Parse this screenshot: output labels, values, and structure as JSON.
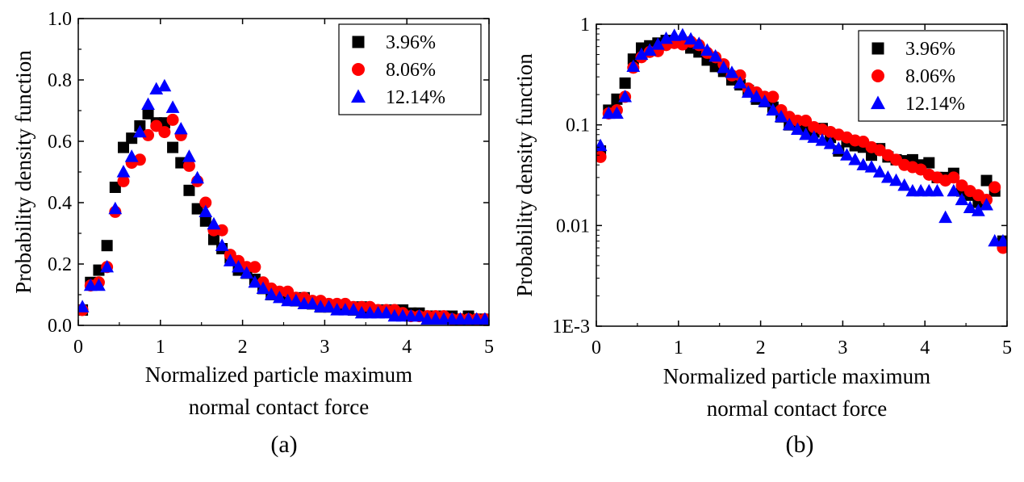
{
  "colors": {
    "3.96%": "#000000",
    "8.06%": "#ff0000",
    "12.14%": "#0000ff"
  },
  "chart_data": [
    {
      "type": "scatter",
      "panel_label": "(a)",
      "xlabel": [
        "Normalized particle maximum",
        "normal contact force"
      ],
      "ylabel": "Probability density function",
      "xlim": [
        0,
        5
      ],
      "ylim": [
        0,
        1.0
      ],
      "y_scale": "linear",
      "x_ticks": [
        "0",
        "1",
        "2",
        "3",
        "4",
        "5"
      ],
      "y_ticks": [
        "0.0",
        "0.2",
        "0.4",
        "0.6",
        "0.8",
        "1.0"
      ],
      "legend_position": "top-right",
      "series": [
        {
          "name": "3.96%",
          "marker": "square",
          "x": [
            0.05,
            0.15,
            0.25,
            0.35,
            0.45,
            0.55,
            0.65,
            0.75,
            0.85,
            0.95,
            1.05,
            1.15,
            1.25,
            1.35,
            1.45,
            1.55,
            1.65,
            1.75,
            1.85,
            1.95,
            2.05,
            2.15,
            2.25,
            2.35,
            2.45,
            2.55,
            2.65,
            2.75,
            2.85,
            2.95,
            3.05,
            3.15,
            3.25,
            3.35,
            3.45,
            3.55,
            3.65,
            3.75,
            3.85,
            3.95,
            4.05,
            4.15,
            4.25,
            4.35,
            4.45,
            4.55,
            4.65,
            4.75,
            4.85,
            4.95
          ],
          "y": [
            0.05,
            0.14,
            0.18,
            0.26,
            0.45,
            0.58,
            0.61,
            0.65,
            0.69,
            0.66,
            0.66,
            0.58,
            0.53,
            0.44,
            0.38,
            0.34,
            0.28,
            0.25,
            0.22,
            0.18,
            0.17,
            0.15,
            0.12,
            0.1,
            0.1,
            0.09,
            0.08,
            0.09,
            0.07,
            0.06,
            0.06,
            0.06,
            0.06,
            0.05,
            0.06,
            0.05,
            0.05,
            0.05,
            0.05,
            0.05,
            0.04,
            0.04,
            0.03,
            0.03,
            0.03,
            0.03,
            0.02,
            0.03,
            0.02,
            0.02
          ]
        },
        {
          "name": "8.06%",
          "marker": "circle",
          "x": [
            0.05,
            0.15,
            0.25,
            0.35,
            0.45,
            0.55,
            0.65,
            0.75,
            0.85,
            0.95,
            1.05,
            1.15,
            1.25,
            1.35,
            1.45,
            1.55,
            1.65,
            1.75,
            1.85,
            1.95,
            2.05,
            2.15,
            2.25,
            2.35,
            2.45,
            2.55,
            2.65,
            2.75,
            2.85,
            2.95,
            3.05,
            3.15,
            3.25,
            3.35,
            3.45,
            3.55,
            3.65,
            3.75,
            3.85,
            3.95,
            4.05,
            4.15,
            4.25,
            4.35,
            4.45,
            4.55,
            4.65,
            4.75,
            4.85,
            4.95
          ],
          "y": [
            0.05,
            0.13,
            0.14,
            0.19,
            0.37,
            0.47,
            0.53,
            0.54,
            0.62,
            0.65,
            0.63,
            0.67,
            0.62,
            0.52,
            0.47,
            0.4,
            0.31,
            0.31,
            0.23,
            0.21,
            0.19,
            0.19,
            0.14,
            0.12,
            0.11,
            0.11,
            0.09,
            0.09,
            0.08,
            0.08,
            0.07,
            0.07,
            0.07,
            0.06,
            0.06,
            0.06,
            0.05,
            0.05,
            0.05,
            0.04,
            0.03,
            0.03,
            0.03,
            0.03,
            0.03,
            0.02,
            0.02,
            0.02,
            0.02,
            0.02
          ]
        },
        {
          "name": "12.14%",
          "marker": "triangle",
          "x": [
            0.05,
            0.15,
            0.25,
            0.35,
            0.45,
            0.55,
            0.65,
            0.75,
            0.85,
            0.95,
            1.05,
            1.15,
            1.25,
            1.35,
            1.45,
            1.55,
            1.65,
            1.75,
            1.85,
            1.95,
            2.05,
            2.15,
            2.25,
            2.35,
            2.45,
            2.55,
            2.65,
            2.75,
            2.85,
            2.95,
            3.05,
            3.15,
            3.25,
            3.35,
            3.45,
            3.55,
            3.65,
            3.75,
            3.85,
            3.95,
            4.05,
            4.15,
            4.25,
            4.35,
            4.45,
            4.55,
            4.65,
            4.75,
            4.85,
            4.95
          ],
          "y": [
            0.06,
            0.13,
            0.13,
            0.19,
            0.38,
            0.5,
            0.55,
            0.63,
            0.72,
            0.77,
            0.78,
            0.71,
            0.64,
            0.55,
            0.48,
            0.37,
            0.33,
            0.26,
            0.21,
            0.19,
            0.17,
            0.14,
            0.12,
            0.1,
            0.09,
            0.08,
            0.08,
            0.07,
            0.07,
            0.06,
            0.06,
            0.05,
            0.05,
            0.05,
            0.04,
            0.04,
            0.04,
            0.04,
            0.03,
            0.03,
            0.03,
            0.03,
            0.02,
            0.02,
            0.02,
            0.02,
            0.02,
            0.02,
            0.02,
            0.02
          ]
        }
      ]
    },
    {
      "type": "scatter",
      "panel_label": "(b)",
      "xlabel": [
        "Normalized particle maximum",
        "normal contact force"
      ],
      "ylabel": "Probability density function",
      "xlim": [
        0,
        5
      ],
      "ylim": [
        0.001,
        1
      ],
      "y_scale": "log",
      "x_ticks": [
        "0",
        "1",
        "2",
        "3",
        "4",
        "5"
      ],
      "y_ticks": [
        "1E-3",
        "0.01",
        "0.1",
        "1"
      ],
      "legend_position": "top-right",
      "series": [
        {
          "name": "3.96%",
          "marker": "square",
          "x": [
            0.05,
            0.15,
            0.25,
            0.35,
            0.45,
            0.55,
            0.65,
            0.75,
            0.85,
            0.95,
            1.05,
            1.15,
            1.25,
            1.35,
            1.45,
            1.55,
            1.65,
            1.75,
            1.85,
            1.95,
            2.05,
            2.15,
            2.25,
            2.35,
            2.45,
            2.55,
            2.65,
            2.75,
            2.85,
            2.95,
            3.05,
            3.15,
            3.25,
            3.35,
            3.45,
            3.55,
            3.65,
            3.75,
            3.85,
            3.95,
            4.05,
            4.15,
            4.25,
            4.35,
            4.45,
            4.55,
            4.65,
            4.75,
            4.85,
            4.95
          ],
          "y": [
            0.055,
            0.14,
            0.18,
            0.26,
            0.45,
            0.58,
            0.61,
            0.65,
            0.69,
            0.66,
            0.66,
            0.58,
            0.53,
            0.44,
            0.38,
            0.34,
            0.28,
            0.25,
            0.22,
            0.18,
            0.17,
            0.15,
            0.12,
            0.1,
            0.1,
            0.09,
            0.085,
            0.092,
            0.075,
            0.055,
            0.068,
            0.062,
            0.06,
            0.05,
            0.058,
            0.048,
            0.045,
            0.044,
            0.045,
            0.04,
            0.042,
            0.03,
            0.03,
            0.033,
            0.022,
            0.02,
            0.017,
            0.028,
            0.022,
            0.007
          ]
        },
        {
          "name": "8.06%",
          "marker": "circle",
          "x": [
            0.05,
            0.15,
            0.25,
            0.35,
            0.45,
            0.55,
            0.65,
            0.75,
            0.85,
            0.95,
            1.05,
            1.15,
            1.25,
            1.35,
            1.45,
            1.55,
            1.65,
            1.75,
            1.85,
            1.95,
            2.05,
            2.15,
            2.25,
            2.35,
            2.45,
            2.55,
            2.65,
            2.75,
            2.85,
            2.95,
            3.05,
            3.15,
            3.25,
            3.35,
            3.45,
            3.55,
            3.65,
            3.75,
            3.85,
            3.95,
            4.05,
            4.15,
            4.25,
            4.35,
            4.45,
            4.55,
            4.65,
            4.75,
            4.85,
            4.95
          ],
          "y": [
            0.048,
            0.13,
            0.14,
            0.19,
            0.37,
            0.47,
            0.53,
            0.54,
            0.62,
            0.65,
            0.63,
            0.67,
            0.62,
            0.52,
            0.47,
            0.4,
            0.31,
            0.31,
            0.23,
            0.21,
            0.19,
            0.19,
            0.14,
            0.12,
            0.11,
            0.11,
            0.095,
            0.09,
            0.085,
            0.08,
            0.075,
            0.07,
            0.068,
            0.06,
            0.056,
            0.05,
            0.045,
            0.04,
            0.038,
            0.036,
            0.032,
            0.03,
            0.028,
            0.03,
            0.025,
            0.022,
            0.02,
            0.018,
            0.024,
            0.006
          ]
        },
        {
          "name": "12.14%",
          "marker": "triangle",
          "x": [
            0.05,
            0.15,
            0.25,
            0.35,
            0.45,
            0.55,
            0.65,
            0.75,
            0.85,
            0.95,
            1.05,
            1.15,
            1.25,
            1.35,
            1.45,
            1.55,
            1.65,
            1.75,
            1.85,
            1.95,
            2.05,
            2.15,
            2.25,
            2.35,
            2.45,
            2.55,
            2.65,
            2.75,
            2.85,
            2.95,
            3.05,
            3.15,
            3.25,
            3.35,
            3.45,
            3.55,
            3.65,
            3.75,
            3.85,
            3.95,
            4.05,
            4.15,
            4.25,
            4.35,
            4.45,
            4.55,
            4.65,
            4.75,
            4.85,
            4.95
          ],
          "y": [
            0.062,
            0.13,
            0.13,
            0.19,
            0.38,
            0.5,
            0.55,
            0.63,
            0.72,
            0.77,
            0.78,
            0.71,
            0.64,
            0.55,
            0.48,
            0.37,
            0.33,
            0.26,
            0.21,
            0.19,
            0.17,
            0.14,
            0.12,
            0.1,
            0.09,
            0.08,
            0.075,
            0.07,
            0.065,
            0.058,
            0.05,
            0.045,
            0.04,
            0.038,
            0.034,
            0.03,
            0.028,
            0.025,
            0.022,
            0.022,
            0.022,
            0.022,
            0.012,
            0.022,
            0.018,
            0.015,
            0.014,
            0.016,
            0.007,
            0.007
          ]
        }
      ]
    }
  ]
}
